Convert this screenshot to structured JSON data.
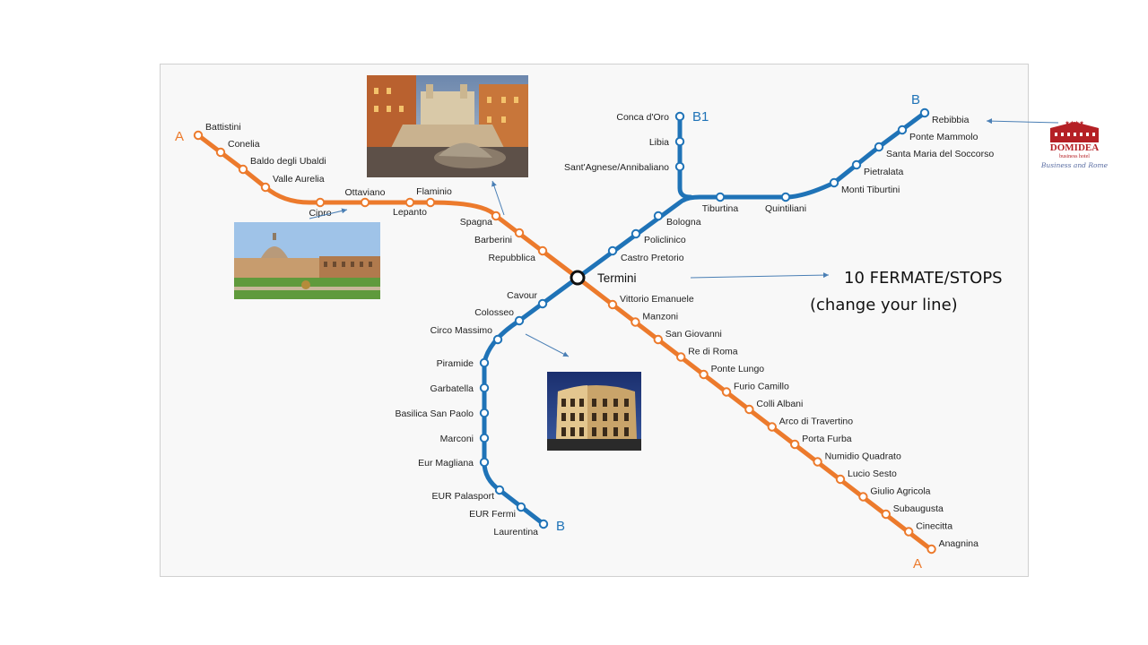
{
  "colors": {
    "line_a": "#ec7a2c",
    "line_b": "#1f73b7",
    "station_fill": "#ffffff",
    "panel_bg": "#f8f8f8",
    "logo_red": "#b52025"
  },
  "line_letters": {
    "a_north": "A",
    "a_south": "A",
    "b_north": "B",
    "b1": "B1",
    "b_south": "B"
  },
  "interchange": "Termini",
  "callout": {
    "line1": "10 FERMATE/STOPS",
    "line2": "(change your line)"
  },
  "stations_a_north": [
    "Battistini",
    "Conelia",
    "Baldo degli Ubaldi",
    "Valle Aurelia",
    "Cipro",
    "Ottaviano",
    "Lepanto",
    "Flaminio",
    "Spagna",
    "Barberini",
    "Repubblica"
  ],
  "stations_a_south": [
    "Vittorio Emanuele",
    "Manzoni",
    "San Giovanni",
    "Re di Roma",
    "Ponte Lungo",
    "Furio Camillo",
    "Colli Albani",
    "Arco di Travertino",
    "Porta Furba",
    "Numidio Quadrato",
    "Lucio Sesto",
    "Giulio Agricola",
    "Subaugusta",
    "Cinecitta",
    "Anagnina"
  ],
  "stations_b_north": [
    "Castro Pretorio",
    "Policlinico",
    "Bologna",
    "Tiburtina",
    "Quintiliani",
    "Monti Tiburtini",
    "Pietralata",
    "Santa Maria del Soccorso",
    "Ponte Mammolo",
    "Rebibbia"
  ],
  "stations_b1": [
    "Sant'Agnese/Annibaliano",
    "Libia",
    "Conca d'Oro"
  ],
  "stations_b_south": [
    "Cavour",
    "Colosseo",
    "Circo Massimo",
    "Piramide",
    "Garbatella",
    "Basilica San Paolo",
    "Marconi",
    "Eur Magliana",
    "EUR Palasport",
    "EUR Fermi",
    "Laurentina"
  ],
  "logo": {
    "stars": "★★★★",
    "name": "DOMIDEA",
    "subtitle": "business hotel",
    "tagline": "Business and Rome"
  },
  "photos": [
    "spanish-steps-photo",
    "vatican-photo",
    "colosseum-photo"
  ]
}
